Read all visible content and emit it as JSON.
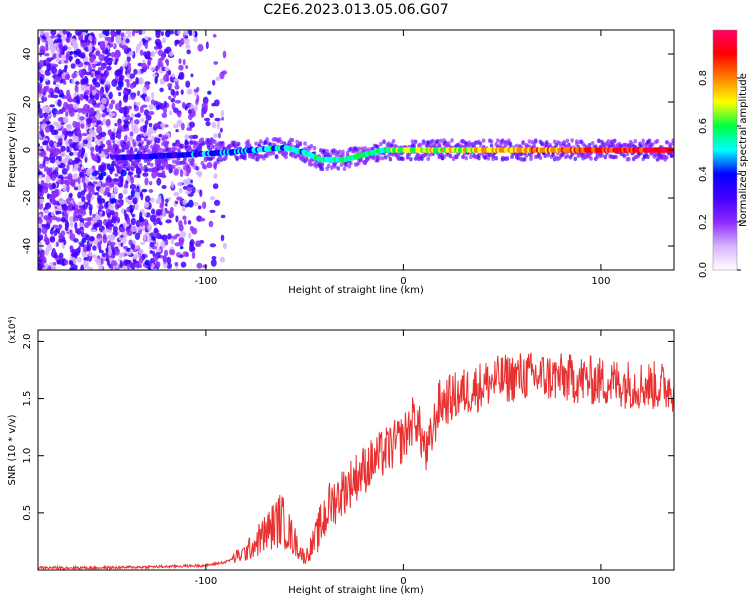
{
  "title": "C2E6.2023.013.05.06.G07",
  "chart_data": [
    {
      "type": "heatmap",
      "xlabel": "Height of straight line (km)",
      "ylabel": "Frequency (Hz)",
      "xlim": [
        -185,
        137
      ],
      "ylim": [
        -50,
        50
      ],
      "x_ticks": [
        -100,
        0,
        100
      ],
      "y_ticks": [
        -40,
        -20,
        0,
        20,
        40
      ],
      "colorbar": {
        "label": "Normalized spectral amplitude",
        "range": [
          0,
          1
        ],
        "ticks": [
          0.0,
          0.2,
          0.4,
          0.6,
          0.8
        ],
        "colormap": [
          "#ffffff",
          "#d6b3ff",
          "#8c29ff",
          "#4400ff",
          "#0000ff",
          "#00ffff",
          "#00ff40",
          "#ffff00",
          "#ff8000",
          "#ff0000",
          "#ff0066"
        ]
      },
      "ridge_frequency_hz": [
        {
          "x": -140,
          "y": -3
        },
        {
          "x": -110,
          "y": -2
        },
        {
          "x": -90,
          "y": -1
        },
        {
          "x": -75,
          "y": 0
        },
        {
          "x": -60,
          "y": 1
        },
        {
          "x": -50,
          "y": -1
        },
        {
          "x": -42,
          "y": -4
        },
        {
          "x": -30,
          "y": -4
        },
        {
          "x": -20,
          "y": -2
        },
        {
          "x": -10,
          "y": 0
        },
        {
          "x": 0,
          "y": 0
        },
        {
          "x": 137,
          "y": 0
        }
      ]
    },
    {
      "type": "line",
      "xlabel": "Height of straight line (km)",
      "ylabel": "SNR (10 * v/v)",
      "y_multiplier": "(x10⁴)",
      "xlim": [
        -185,
        137
      ],
      "ylim": [
        0,
        2.1
      ],
      "x_ticks": [
        -100,
        0,
        100
      ],
      "y_ticks": [
        0.5,
        1.0,
        1.5,
        2.0
      ],
      "series": [
        {
          "color": "#e83030",
          "points": [
            {
              "x": -185,
              "y": 0.02
            },
            {
              "x": -150,
              "y": 0.02
            },
            {
              "x": -120,
              "y": 0.03
            },
            {
              "x": -100,
              "y": 0.04
            },
            {
              "x": -90,
              "y": 0.07
            },
            {
              "x": -80,
              "y": 0.15
            },
            {
              "x": -70,
              "y": 0.32
            },
            {
              "x": -62,
              "y": 0.45
            },
            {
              "x": -55,
              "y": 0.25
            },
            {
              "x": -50,
              "y": 0.1
            },
            {
              "x": -45,
              "y": 0.25
            },
            {
              "x": -38,
              "y": 0.55
            },
            {
              "x": -30,
              "y": 0.7
            },
            {
              "x": -22,
              "y": 0.85
            },
            {
              "x": -15,
              "y": 0.95
            },
            {
              "x": -8,
              "y": 1.05
            },
            {
              "x": 0,
              "y": 1.15
            },
            {
              "x": 6,
              "y": 1.35
            },
            {
              "x": 12,
              "y": 1.0
            },
            {
              "x": 18,
              "y": 1.45
            },
            {
              "x": 30,
              "y": 1.55
            },
            {
              "x": 45,
              "y": 1.65
            },
            {
              "x": 60,
              "y": 1.7
            },
            {
              "x": 80,
              "y": 1.68
            },
            {
              "x": 100,
              "y": 1.65
            },
            {
              "x": 120,
              "y": 1.62
            },
            {
              "x": 137,
              "y": 1.6
            }
          ]
        }
      ]
    }
  ]
}
